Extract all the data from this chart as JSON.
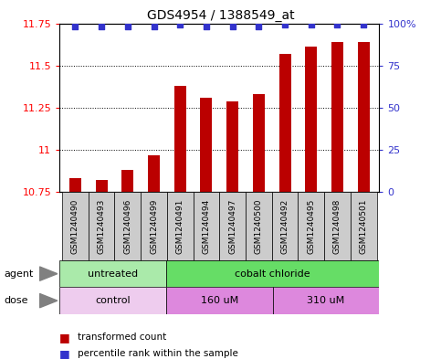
{
  "title": "GDS4954 / 1388549_at",
  "samples": [
    "GSM1240490",
    "GSM1240493",
    "GSM1240496",
    "GSM1240499",
    "GSM1240491",
    "GSM1240494",
    "GSM1240497",
    "GSM1240500",
    "GSM1240492",
    "GSM1240495",
    "GSM1240498",
    "GSM1240501"
  ],
  "bar_values": [
    10.83,
    10.82,
    10.88,
    10.97,
    11.38,
    11.31,
    11.29,
    11.33,
    11.57,
    11.61,
    11.64,
    11.64
  ],
  "percentile_values": [
    98,
    98,
    98,
    98,
    99,
    98,
    98,
    98,
    99,
    99,
    99,
    99
  ],
  "bar_color": "#bb0000",
  "percentile_color": "#3333cc",
  "ylim_left": [
    10.75,
    11.75
  ],
  "ylim_right": [
    0,
    100
  ],
  "yticks_left": [
    10.75,
    11.0,
    11.25,
    11.5,
    11.75
  ],
  "yticks_right": [
    0,
    25,
    50,
    75,
    100
  ],
  "ytick_labels_left": [
    "10.75",
    "11",
    "11.25",
    "11.5",
    "11.75"
  ],
  "ytick_labels_right": [
    "0",
    "25",
    "50",
    "75",
    "100%"
  ],
  "agent_groups": [
    {
      "label": "untreated",
      "start": 0,
      "end": 4,
      "color": "#aaeaaa"
    },
    {
      "label": "cobalt chloride",
      "start": 4,
      "end": 12,
      "color": "#66dd66"
    }
  ],
  "dose_groups": [
    {
      "label": "control",
      "start": 0,
      "end": 4,
      "color": "#eeccee"
    },
    {
      "label": "160 uM",
      "start": 4,
      "end": 8,
      "color": "#dd88dd"
    },
    {
      "label": "310 uM",
      "start": 8,
      "end": 12,
      "color": "#dd88dd"
    }
  ],
  "legend_bar_label": "transformed count",
  "legend_dot_label": "percentile rank within the sample",
  "background_color": "#ffffff",
  "sample_bg_color": "#cccccc",
  "grid_color": "#000000"
}
